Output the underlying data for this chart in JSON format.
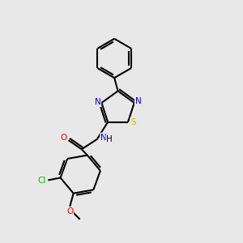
{
  "background_color": "#e8e8e8",
  "bond_color": "#000000",
  "atom_colors": {
    "N": "#0000ff",
    "O": "#ff0000",
    "S": "#bbbb00",
    "Cl": "#00bb00",
    "C": "#000000",
    "H": "#000000"
  },
  "lw": 1.5
}
